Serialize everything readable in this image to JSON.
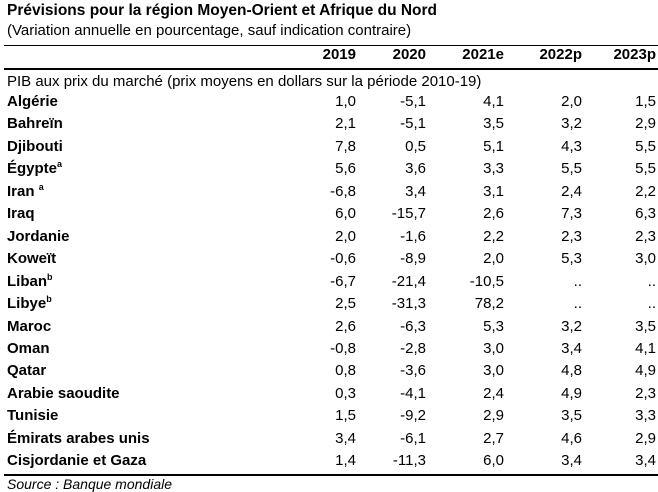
{
  "title": "Prévisions pour la région Moyen-Orient et Afrique du Nord",
  "subtitle": "(Variation annuelle en pourcentage, sauf indication contraire)",
  "columns": [
    "2019",
    "2020",
    "2021e",
    "2022p",
    "2023p"
  ],
  "section_label": "PIB aux prix du marché (prix moyens en dollars sur la période 2010-19)",
  "rows": [
    {
      "country": "Algérie",
      "sup": "",
      "values": [
        "1,0",
        "-5,1",
        "4,1",
        "2,0",
        "1,5"
      ]
    },
    {
      "country": "Bahreïn",
      "sup": "",
      "values": [
        "2,1",
        "-5,1",
        "3,5",
        "3,2",
        "2,9"
      ]
    },
    {
      "country": "Djibouti",
      "sup": "",
      "values": [
        "7,8",
        "0,5",
        "5,1",
        "4,3",
        "5,5"
      ]
    },
    {
      "country": "Égypte",
      "sup": "a",
      "values": [
        "5,6",
        "3,6",
        "3,3",
        "5,5",
        "5,5"
      ]
    },
    {
      "country": "Iran ",
      "sup": "a",
      "values": [
        "-6,8",
        "3,4",
        "3,1",
        "2,4",
        "2,2"
      ]
    },
    {
      "country": "Iraq",
      "sup": "",
      "values": [
        "6,0",
        "-15,7",
        "2,6",
        "7,3",
        "6,3"
      ]
    },
    {
      "country": "Jordanie",
      "sup": "",
      "values": [
        "2,0",
        "-1,6",
        "2,2",
        "2,3",
        "2,3"
      ]
    },
    {
      "country": "Koweït",
      "sup": "",
      "values": [
        "-0,6",
        "-8,9",
        "2,0",
        "5,3",
        "3,0"
      ]
    },
    {
      "country": "Liban",
      "sup": "b",
      "values": [
        "-6,7",
        "-21,4",
        "-10,5",
        "..",
        ".."
      ]
    },
    {
      "country": "Libye",
      "sup": "b",
      "values": [
        "2,5",
        "-31,3",
        "78,2",
        "..",
        ".."
      ]
    },
    {
      "country": "Maroc",
      "sup": "",
      "values": [
        "2,6",
        "-6,3",
        "5,3",
        "3,2",
        "3,5"
      ]
    },
    {
      "country": "Oman",
      "sup": "",
      "values": [
        "-0,8",
        "-2,8",
        "3,0",
        "3,4",
        "4,1"
      ]
    },
    {
      "country": "Qatar",
      "sup": "",
      "values": [
        "0,8",
        "-3,6",
        "3,0",
        "4,8",
        "4,9"
      ]
    },
    {
      "country": "Arabie saoudite",
      "sup": "",
      "values": [
        "0,3",
        "-4,1",
        "2,4",
        "4,9",
        "2,3"
      ]
    },
    {
      "country": "Tunisie",
      "sup": "",
      "values": [
        "1,5",
        "-9,2",
        "2,9",
        "3,5",
        "3,3"
      ]
    },
    {
      "country": "Émirats arabes unis",
      "sup": "",
      "values": [
        "3,4",
        "-6,1",
        "2,7",
        "4,6",
        "2,9"
      ]
    },
    {
      "country": "Cisjordanie et Gaza",
      "sup": "",
      "values": [
        "1,4",
        "-11,3",
        "6,0",
        "3,4",
        "3,4"
      ]
    }
  ],
  "source": "Source : Banque mondiale"
}
